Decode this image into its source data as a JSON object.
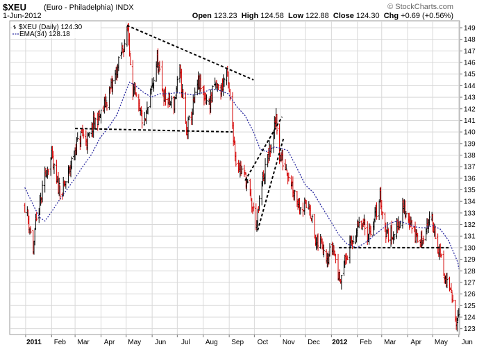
{
  "header": {
    "symbol": "$XEU",
    "name": "(Euro - Philadelphia)",
    "exchange": "INDX",
    "date": "1-Jun-2012",
    "copyright": "© StockCharts.com",
    "open_label": "Open",
    "open": "123.23",
    "high_label": "High",
    "high": "124.58",
    "low_label": "Low",
    "low": "122.88",
    "close_label": "Close",
    "close": "124.30",
    "chg_label": "Chg",
    "chg": "+0.69 (+0.56%)"
  },
  "colors": {
    "up_bar": "#000000",
    "down_bar": "#d40000",
    "ema_line": "#2a2aa0",
    "grid": "#d8d8d8",
    "trendline": "#000000"
  },
  "chart_data": {
    "type": "ohlc",
    "title": "$XEU (Euro - Philadelphia) INDX",
    "legend": [
      {
        "label": "$XEU (Daily) 124.30",
        "style": "ohlc"
      },
      {
        "label": "EMA(34) 128.18",
        "style": "dotted-line"
      }
    ],
    "legend_placement": "top-left",
    "y_axis_side": "right",
    "ylim": [
      122.5,
      149.6
    ],
    "y_ticks": [
      123,
      124,
      125,
      126,
      127,
      128,
      129,
      130,
      131,
      132,
      133,
      134,
      135,
      136,
      137,
      138,
      139,
      140,
      141,
      142,
      143,
      144,
      145,
      146,
      147,
      148,
      149
    ],
    "x_ticks": [
      "2011",
      "Feb",
      "Mar",
      "Apr",
      "May",
      "Jun",
      "Jul",
      "Aug",
      "Sep",
      "Oct",
      "Nov",
      "Dec",
      "2012",
      "Feb",
      "Mar",
      "Apr",
      "May",
      "Jun"
    ],
    "grid": true,
    "price_path": [
      [
        "2010-12-31",
        133.7
      ],
      [
        "2011-01-05",
        132.2
      ],
      [
        "2011-01-10",
        129.8
      ],
      [
        "2011-01-13",
        131.8
      ],
      [
        "2011-01-20",
        134.4
      ],
      [
        "2011-01-26",
        136.8
      ],
      [
        "2011-02-01",
        137.8
      ],
      [
        "2011-02-07",
        135.5
      ],
      [
        "2011-02-14",
        134.8
      ],
      [
        "2011-02-22",
        136.6
      ],
      [
        "2011-03-01",
        138.5
      ],
      [
        "2011-03-09",
        139.8
      ],
      [
        "2011-03-16",
        139.2
      ],
      [
        "2011-03-24",
        140.8
      ],
      [
        "2011-04-01",
        141.5
      ],
      [
        "2011-04-08",
        142.8
      ],
      [
        "2011-04-15",
        144.2
      ],
      [
        "2011-04-21",
        145.6
      ],
      [
        "2011-04-28",
        147.5
      ],
      [
        "2011-05-03",
        148.8
      ],
      [
        "2011-05-09",
        143.8
      ],
      [
        "2011-05-16",
        141.8
      ],
      [
        "2011-05-23",
        140.6
      ],
      [
        "2011-05-31",
        143.5
      ],
      [
        "2011-06-07",
        146.2
      ],
      [
        "2011-06-13",
        143.5
      ],
      [
        "2011-06-20",
        142.6
      ],
      [
        "2011-06-27",
        142.4
      ],
      [
        "2011-07-04",
        145.3
      ],
      [
        "2011-07-12",
        140.0
      ],
      [
        "2011-07-19",
        141.8
      ],
      [
        "2011-07-26",
        144.3
      ],
      [
        "2011-08-01",
        143.2
      ],
      [
        "2011-08-08",
        142.4
      ],
      [
        "2011-08-15",
        144.0
      ],
      [
        "2011-08-22",
        143.6
      ],
      [
        "2011-08-29",
        145.3
      ],
      [
        "2011-09-05",
        140.6
      ],
      [
        "2011-09-09",
        137.5
      ],
      [
        "2011-09-14",
        136.9
      ],
      [
        "2011-09-21",
        136.0
      ],
      [
        "2011-09-26",
        134.2
      ],
      [
        "2011-10-04",
        132.1
      ],
      [
        "2011-10-10",
        135.5
      ],
      [
        "2011-10-17",
        137.7
      ],
      [
        "2011-10-24",
        139.6
      ],
      [
        "2011-10-27",
        141.5
      ],
      [
        "2011-10-31",
        137.9
      ],
      [
        "2011-11-08",
        137.0
      ],
      [
        "2011-11-15",
        135.5
      ],
      [
        "2011-11-22",
        134.0
      ],
      [
        "2011-11-29",
        133.5
      ],
      [
        "2011-12-06",
        133.7
      ],
      [
        "2011-12-13",
        130.3
      ],
      [
        "2011-12-20",
        130.4
      ],
      [
        "2011-12-28",
        129.3
      ],
      [
        "2012-01-03",
        130.2
      ],
      [
        "2012-01-10",
        127.3
      ],
      [
        "2012-01-17",
        128.8
      ],
      [
        "2012-01-24",
        130.2
      ],
      [
        "2012-01-31",
        131.6
      ],
      [
        "2012-02-07",
        131.9
      ],
      [
        "2012-02-14",
        131.2
      ],
      [
        "2012-02-21",
        132.3
      ],
      [
        "2012-02-28",
        134.4
      ],
      [
        "2012-03-06",
        131.3
      ],
      [
        "2012-03-13",
        131.1
      ],
      [
        "2012-03-20",
        132.0
      ],
      [
        "2012-03-27",
        133.4
      ],
      [
        "2012-04-03",
        132.5
      ],
      [
        "2012-04-10",
        131.0
      ],
      [
        "2012-04-17",
        130.5
      ],
      [
        "2012-04-24",
        132.0
      ],
      [
        "2012-05-01",
        132.3
      ],
      [
        "2012-05-08",
        129.8
      ],
      [
        "2012-05-15",
        127.4
      ],
      [
        "2012-05-22",
        126.1
      ],
      [
        "2012-05-29",
        124.0
      ],
      [
        "2012-06-01",
        124.3
      ]
    ],
    "ema_path": [
      [
        "2010-12-31",
        135.2
      ],
      [
        "2011-01-06",
        134.3
      ],
      [
        "2011-01-12",
        133.4
      ],
      [
        "2011-01-18",
        132.6
      ],
      [
        "2011-01-24",
        132.3
      ],
      [
        "2011-02-01",
        133.1
      ],
      [
        "2011-02-10",
        134.1
      ],
      [
        "2011-02-20",
        135.1
      ],
      [
        "2011-03-01",
        136.0
      ],
      [
        "2011-03-10",
        137.0
      ],
      [
        "2011-03-20",
        138.0
      ],
      [
        "2011-03-31",
        139.5
      ],
      [
        "2011-04-10",
        140.4
      ],
      [
        "2011-04-20",
        141.5
      ],
      [
        "2011-04-30",
        143.4
      ],
      [
        "2011-05-05",
        144.3
      ],
      [
        "2011-05-12",
        144.0
      ],
      [
        "2011-05-20",
        143.5
      ],
      [
        "2011-05-31",
        143.0
      ],
      [
        "2011-06-10",
        143.3
      ],
      [
        "2011-06-20",
        143.3
      ],
      [
        "2011-07-01",
        143.4
      ],
      [
        "2011-07-10",
        143.3
      ],
      [
        "2011-07-20",
        143.2
      ],
      [
        "2011-08-01",
        143.4
      ],
      [
        "2011-08-10",
        143.7
      ],
      [
        "2011-08-20",
        143.6
      ],
      [
        "2011-08-31",
        143.3
      ],
      [
        "2011-09-10",
        142.2
      ],
      [
        "2011-09-20",
        141.4
      ],
      [
        "2011-09-30",
        140.0
      ],
      [
        "2011-10-08",
        138.5
      ],
      [
        "2011-10-15",
        138.3
      ],
      [
        "2011-10-25",
        138.7
      ],
      [
        "2011-11-01",
        138.6
      ],
      [
        "2011-11-10",
        138.4
      ],
      [
        "2011-11-20",
        137.0
      ],
      [
        "2011-12-01",
        135.4
      ],
      [
        "2011-12-10",
        134.8
      ],
      [
        "2011-12-20",
        133.6
      ],
      [
        "2011-12-31",
        132.3
      ],
      [
        "2012-01-10",
        131.1
      ],
      [
        "2012-01-20",
        130.3
      ],
      [
        "2012-01-31",
        130.0
      ],
      [
        "2012-02-10",
        130.4
      ],
      [
        "2012-02-20",
        131.0
      ],
      [
        "2012-03-01",
        131.6
      ],
      [
        "2012-03-10",
        132.1
      ],
      [
        "2012-03-20",
        132.3
      ],
      [
        "2012-03-31",
        132.1
      ],
      [
        "2012-04-10",
        131.8
      ],
      [
        "2012-04-20",
        131.7
      ],
      [
        "2012-05-01",
        131.9
      ],
      [
        "2012-05-10",
        131.6
      ],
      [
        "2012-05-20",
        130.6
      ],
      [
        "2012-05-31",
        128.7
      ],
      [
        "2012-06-01",
        128.18
      ]
    ],
    "annotations": [
      {
        "type": "trendline",
        "from": [
          "2011-05-02",
          149.2
        ],
        "to": [
          "2011-09-30",
          144.5
        ]
      },
      {
        "type": "trendline",
        "from": [
          "2011-03-01",
          140.3
        ],
        "to": [
          "2011-09-05",
          140.0
        ]
      },
      {
        "type": "trendline",
        "from": [
          "2011-09-20",
          135.8
        ],
        "to": [
          "2011-11-03",
          141.3
        ]
      },
      {
        "type": "trendline",
        "from": [
          "2011-10-05",
          131.5
        ],
        "to": [
          "2011-11-05",
          139.5
        ]
      },
      {
        "type": "trendline",
        "from": [
          "2012-01-10",
          130.0
        ],
        "to": [
          "2012-05-22",
          130.0
        ]
      }
    ]
  }
}
